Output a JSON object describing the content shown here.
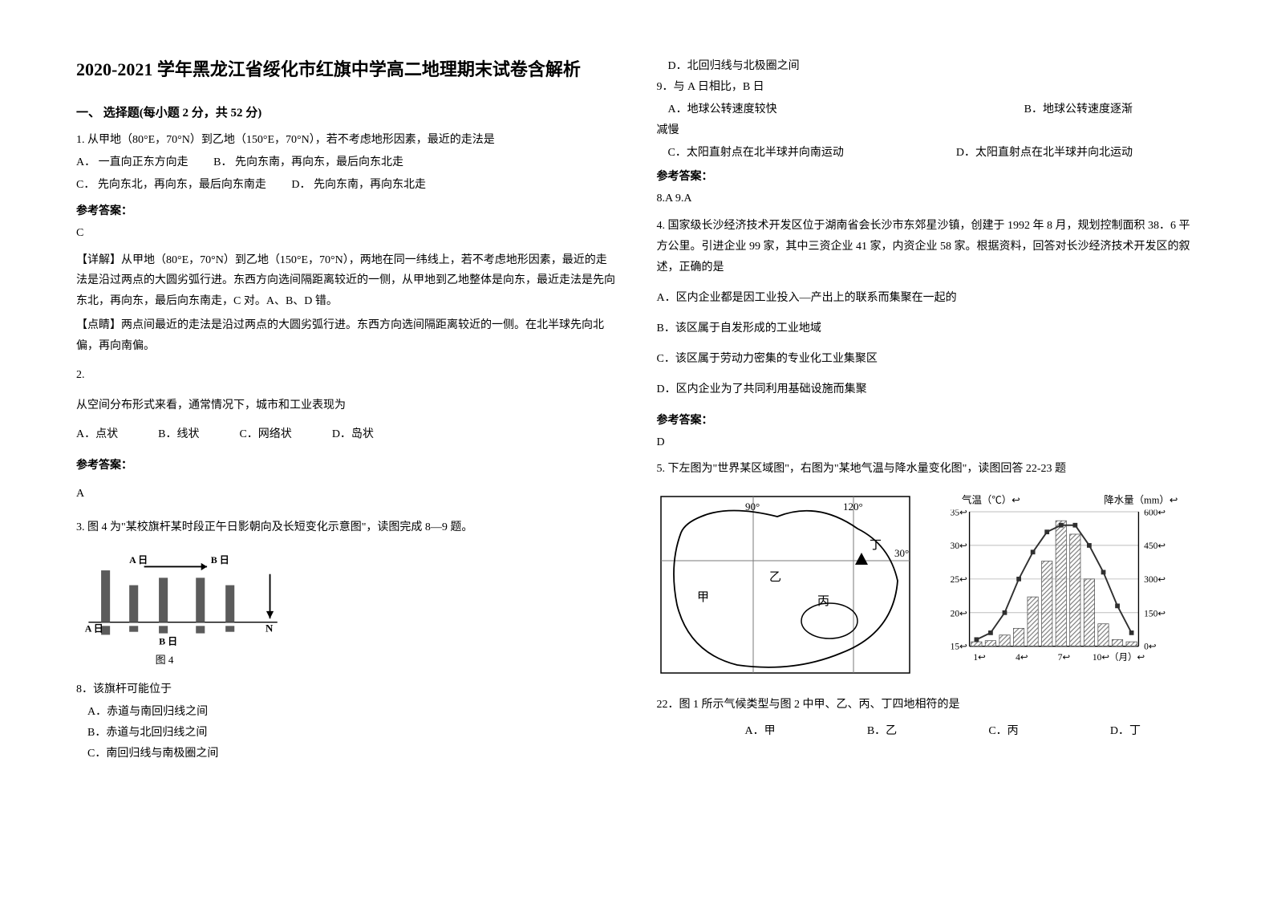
{
  "title": "2020-2021 学年黑龙江省绥化市红旗中学高二地理期末试卷含解析",
  "section1": "一、  选择题(每小题 2 分，共 52 分)",
  "q1": {
    "stem": "1. 从甲地（80°E，70°N）到乙地（150°E，70°N），若不考虑地形因素，最近的走法是",
    "optA": "A．  一直向正东方向走",
    "optB": "B．  先向东南，再向东，最后向东北走",
    "optC": "C．  先向东北，再向东，最后向东南走",
    "optD": "D．  先向东南，再向东北走",
    "answerLabel": "参考答案：",
    "answer": "C",
    "exp1": "【详解】从甲地（80°E，70°N）到乙地（150°E，70°N），两地在同一纬线上，若不考虑地形因素，最近的走法是沿过两点的大圆劣弧行进。东西方向选间隔距离较近的一侧，从甲地到乙地整体是向东，最近走法是先向东北，再向东，最后向东南走，C 对。A、B、D 错。",
    "exp2": "【点睛】两点间最近的走法是沿过两点的大圆劣弧行进。东西方向选间隔距离较近的一侧。在北半球先向北偏，再向南偏。"
  },
  "q2": {
    "num": "2.",
    "stem": "从空间分布形式来看，通常情况下，城市和工业表现为",
    "optA": "A．点状",
    "optB": "B．线状",
    "optC": "C．网络状",
    "optD": "D．岛状",
    "answerLabel": "参考答案：",
    "answer": "A"
  },
  "q3": {
    "stem": "3. 图 4 为\"某校旗杆某时段正午日影朝向及长短变化示意图\"，读图完成 8—9 题。",
    "figCaption": "图 4",
    "labelA1": "A 日",
    "labelB1": "B 日",
    "labelA2": "A 日",
    "labelB2": "B 日",
    "labelN": "N",
    "sub8": "8．该旗杆可能位于",
    "opt8A": "A．赤道与南回归线之间",
    "opt8B": "B．赤道与北回归线之间",
    "opt8C": "C．南回归线与南极圈之间",
    "opt8D": "D．北回归线与北极圈之间",
    "sub9": "9．与 A 日相比，B 日",
    "opt9A": "A．地球公转速度较快",
    "opt9B": "B．地球公转速度逐渐",
    "opt9B2": "减慢",
    "opt9C": "C．太阳直射点在北半球并向南运动",
    "opt9D": "D．太阳直射点在北半球并向北运动",
    "answerLabel": "参考答案：",
    "answer": "8.A   9.A"
  },
  "q4": {
    "stem": "4. 国家级长沙经济技术开发区位于湖南省会长沙市东郊星沙镇，创建于 1992 年 8 月，规划控制面积 38．6 平方公里。引进企业 99 家，其中三资企业 41 家，内资企业 58 家。根据资料，回答对长沙经济技术开发区的叙述，正确的是",
    "optA": "A．区内企业都是因工业投入—产出上的联系而集聚在一起的",
    "optB": "B．该区属于自发形成的工业地域",
    "optC": "C．该区属于劳动力密集的专业化工业集聚区",
    "optD": "D．区内企业为了共同利用基础设施而集聚",
    "answerLabel": "参考答案：",
    "answer": "D"
  },
  "q5": {
    "stem": "5. 下左图为\"世界某区域图\"，右图为\"某地气温与降水量变化图\"，读图回答 22-23 题",
    "mapLon1": "90°",
    "mapLon2": "120°",
    "mapLat": "30°",
    "mapLabelJia": "甲",
    "mapLabelYi": "乙",
    "mapLabelBing": "丙",
    "mapLabelDing": "丁",
    "chartTitleLeft": "气温（℃）↩",
    "chartTitleRight": "降水量（mm）↩",
    "tempTicks": [
      "35↩",
      "30↩",
      "25↩",
      "20↩",
      "15↩"
    ],
    "rainTicks": [
      "600↩",
      "450↩",
      "300↩",
      "150↩",
      "0↩"
    ],
    "monthTicks": [
      "1↩",
      "4↩",
      "7↩",
      "10↩（月）↩"
    ],
    "sub22": "22．图 1 所示气候类型与图 2 中甲、乙、丙、丁四地相符的是",
    "opt22A": "A．甲",
    "opt22B": "B．乙",
    "opt22C": "C．丙",
    "opt22D": "D．丁"
  },
  "style": {
    "boldColor": "#000000",
    "svgStroke": "#000000",
    "svgFill": "#5b5b5b",
    "hatchFill": "#9aa0a6",
    "gridColor": "#7a7a7a",
    "tempLineColor": "#303030"
  },
  "chart": {
    "tempValues": [
      16,
      17,
      20,
      25,
      29,
      32,
      33,
      33,
      30,
      26,
      21,
      17
    ],
    "rainValues": [
      20,
      25,
      50,
      80,
      220,
      380,
      560,
      500,
      300,
      100,
      30,
      20
    ],
    "tempYMin": 15,
    "tempYMax": 35,
    "rainYMin": 0,
    "rainYMax": 600
  }
}
